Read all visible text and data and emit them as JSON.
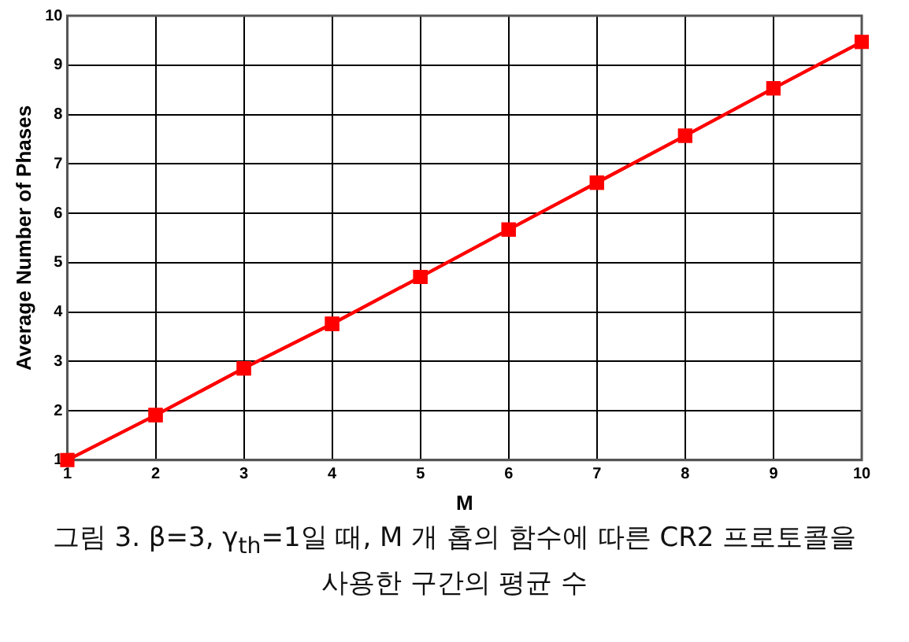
{
  "chart_data": {
    "type": "line",
    "xlabel": "M",
    "ylabel": "Average Number of Phases",
    "x": [
      1,
      2,
      3,
      4,
      5,
      6,
      7,
      8,
      9,
      10
    ],
    "series": [
      {
        "color": "#ff0000",
        "values": [
          1.0,
          1.91,
          2.86,
          3.76,
          4.71,
          5.67,
          6.62,
          7.57,
          8.53,
          9.47
        ]
      }
    ],
    "xlim": [
      1,
      10
    ],
    "xticks": [
      1,
      2,
      3,
      4,
      5,
      6,
      7,
      8,
      9,
      10
    ],
    "ylim": [
      1,
      10
    ],
    "yticks": [
      1,
      2,
      3,
      4,
      5,
      6,
      7,
      8,
      9,
      10
    ],
    "grid": true,
    "marker": "square",
    "line_style": "solid",
    "legend": false,
    "annotations": [
      "그림 3. β=3, γ$_{th}$=1일 때, M 개 홉의 함수에 따른 CR2 프로토콜을 사용한 구간의 평균 수"
    ]
  }
}
